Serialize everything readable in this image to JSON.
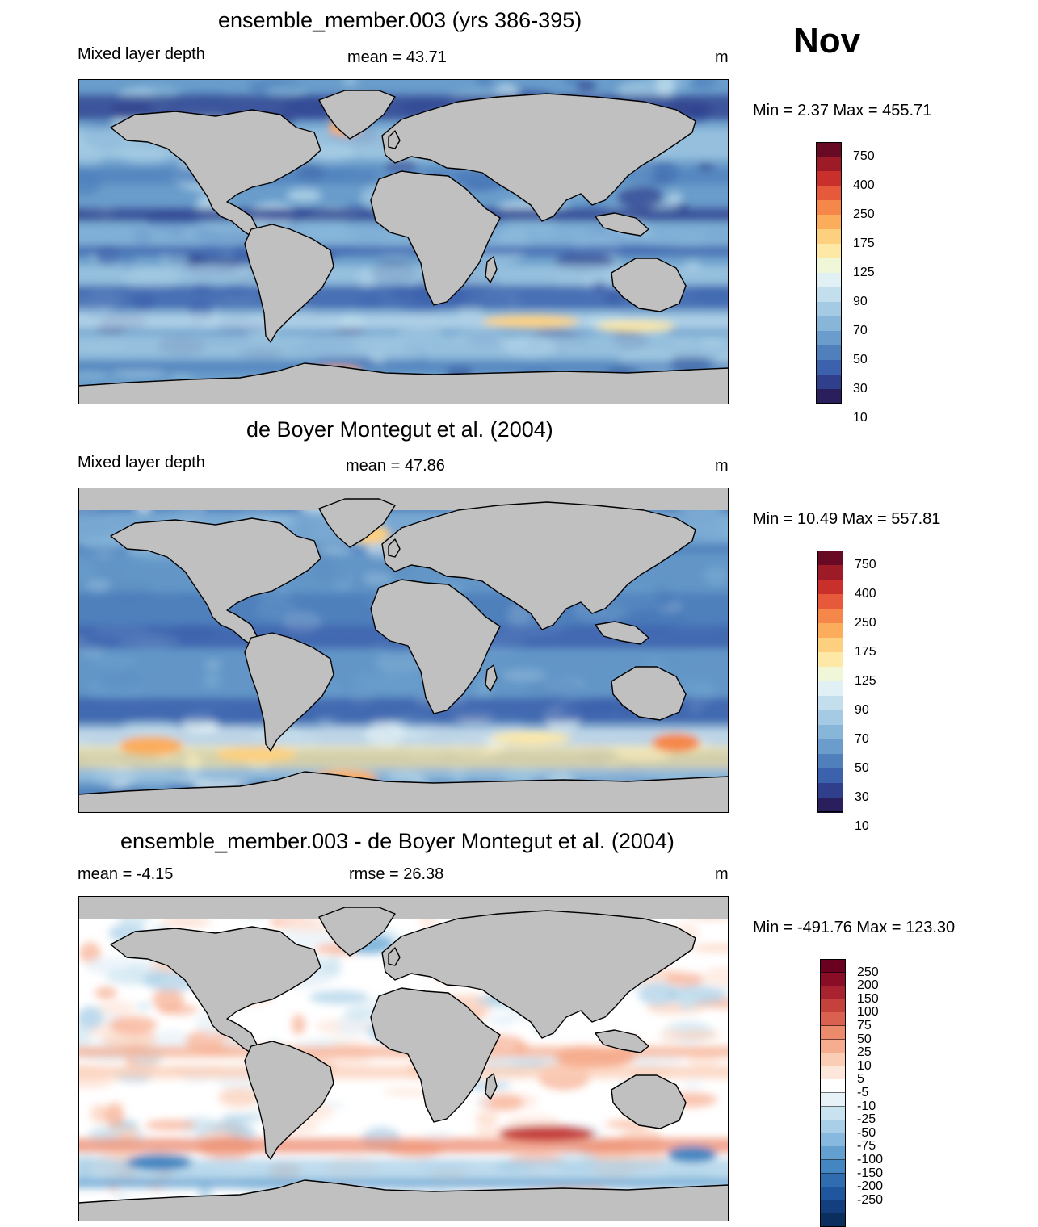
{
  "month": "Nov",
  "panels": [
    {
      "title": "ensemble_member.003 (yrs 386-395)",
      "left_label": "Mixed layer depth",
      "center_label": "mean =  43.71",
      "units": "m",
      "minmax": "Min =   2.37 Max = 455.71",
      "map_style": "model"
    },
    {
      "title": "de Boyer Montegut et al. (2004)",
      "left_label": "Mixed layer depth",
      "center_label": "mean =  47.86",
      "units": "m",
      "minmax": "Min =  10.49 Max = 557.81",
      "map_style": "obs"
    },
    {
      "title": "ensemble_member.003 - de Boyer Montegut et al. (2004)",
      "left_label": "mean =  -4.15",
      "center_label": "rmse =  26.38",
      "units": "m",
      "minmax": "Min = -491.76 Max = 123.30",
      "map_style": "diff"
    }
  ],
  "legend_depth": {
    "colors": [
      "#2a1e5c",
      "#2f3f8c",
      "#3d62ad",
      "#4f80bc",
      "#6a9dcb",
      "#87b6d9",
      "#a4cbe3",
      "#c3dfee",
      "#e1f0f4",
      "#f0f6d8",
      "#fde8a6",
      "#fdd080",
      "#fbad5c",
      "#f6874a",
      "#e6593a",
      "#c9302b",
      "#9c1b27",
      "#680a24"
    ],
    "labels": [
      "10",
      "30",
      "50",
      "70",
      "90",
      "125",
      "175",
      "250",
      "400",
      "750"
    ]
  },
  "legend_diff": {
    "colors": [
      "#0a2e5e",
      "#143f7f",
      "#1f569e",
      "#2f6db0",
      "#4486c1",
      "#63a0d0",
      "#86b9dd",
      "#a8cfe7",
      "#c9e2f0",
      "#e6f1f8",
      "#ffffff",
      "#fde6da",
      "#fbcdb5",
      "#f6ad8f",
      "#ec8a6c",
      "#da6150",
      "#c5413c",
      "#a8222f",
      "#8a0d27",
      "#6a0120"
    ],
    "labels": [
      "250",
      "200",
      "150",
      "100",
      "75",
      "50",
      "25",
      "10",
      "5",
      "-5",
      "-10",
      "-25",
      "-50",
      "-75",
      "-100",
      "-150",
      "-200",
      "-250"
    ]
  },
  "colors": {
    "land": "#c0c0c0",
    "coast": "#000000"
  }
}
